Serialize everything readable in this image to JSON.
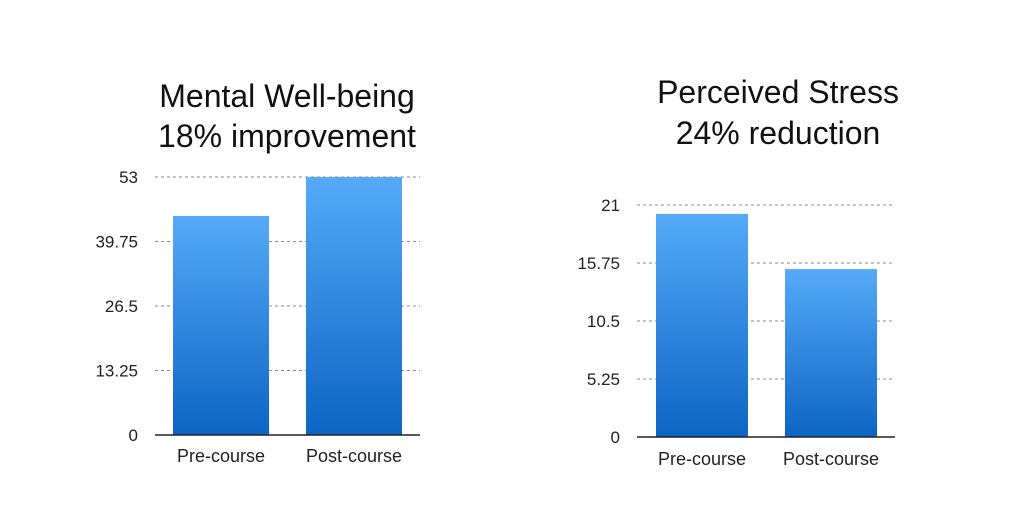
{
  "chart_data": [
    {
      "type": "bar",
      "title": "Mental Well-being",
      "subtitle": "18% improvement",
      "categories": [
        "Pre-course",
        "Post-course"
      ],
      "values": [
        45,
        53
      ],
      "ylim": [
        0,
        53
      ],
      "yticks": [
        0,
        13.25,
        26.5,
        39.75,
        53
      ],
      "ytick_labels": [
        "0",
        "13.25",
        "26.5",
        "39.75",
        "53"
      ],
      "grid": true,
      "legend": "none",
      "bar_color_top": "#56aaf8",
      "bar_color_bottom": "#0d64c4"
    },
    {
      "type": "bar",
      "title": "Perceived Stress",
      "subtitle": "24% reduction",
      "categories": [
        "Pre-course",
        "Post-course"
      ],
      "values": [
        20.2,
        15.2
      ],
      "ylim": [
        0,
        21
      ],
      "yticks": [
        0,
        5.25,
        10.5,
        15.75,
        21
      ],
      "ytick_labels": [
        "0",
        "5.25",
        "10.5",
        "15.75",
        "21"
      ],
      "grid": true,
      "legend": "none",
      "bar_color_top": "#56aaf8",
      "bar_color_bottom": "#0d64c4"
    }
  ]
}
